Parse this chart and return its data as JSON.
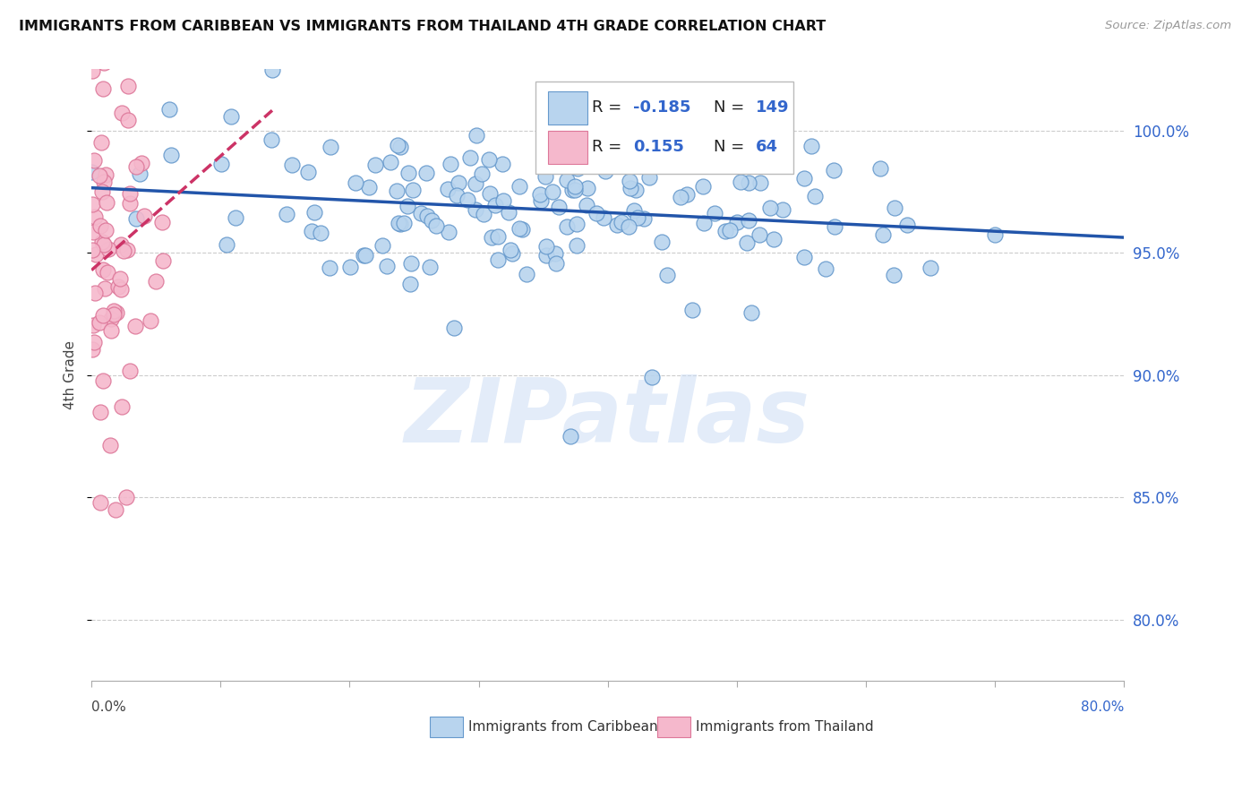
{
  "title": "IMMIGRANTS FROM CARIBBEAN VS IMMIGRANTS FROM THAILAND 4TH GRADE CORRELATION CHART",
  "source": "Source: ZipAtlas.com",
  "ylabel": "4th Grade",
  "ytick_labels": [
    "80.0%",
    "85.0%",
    "90.0%",
    "95.0%",
    "100.0%"
  ],
  "ytick_values": [
    0.8,
    0.85,
    0.9,
    0.95,
    1.0
  ],
  "xtick_left_label": "0.0%",
  "xtick_right_label": "80.0%",
  "xlim": [
    0.0,
    0.8
  ],
  "ylim": [
    0.775,
    1.025
  ],
  "R_caribbean": -0.185,
  "N_caribbean": 149,
  "R_thailand": 0.155,
  "N_thailand": 64,
  "color_caribbean_fill": "#b8d4ee",
  "color_caribbean_edge": "#6699cc",
  "color_caribbean_line": "#2255aa",
  "color_thailand_fill": "#f5b8cc",
  "color_thailand_edge": "#dd7799",
  "color_thailand_line": "#cc3366",
  "watermark_text": "ZIPatlas",
  "watermark_color": "#ccddf5",
  "grid_color": "#cccccc",
  "title_color": "#111111",
  "source_color": "#999999",
  "axis_label_color": "#444444",
  "right_tick_color": "#3366cc",
  "legend_text_color": "#222222",
  "legend_rn_color": "#3366cc",
  "bottom_legend1": "Immigrants from Caribbean",
  "bottom_legend2": "Immigrants from Thailand",
  "legend_val1": "-0.185",
  "legend_val2": "0.155",
  "legend_n1": "149",
  "legend_n2": "64"
}
